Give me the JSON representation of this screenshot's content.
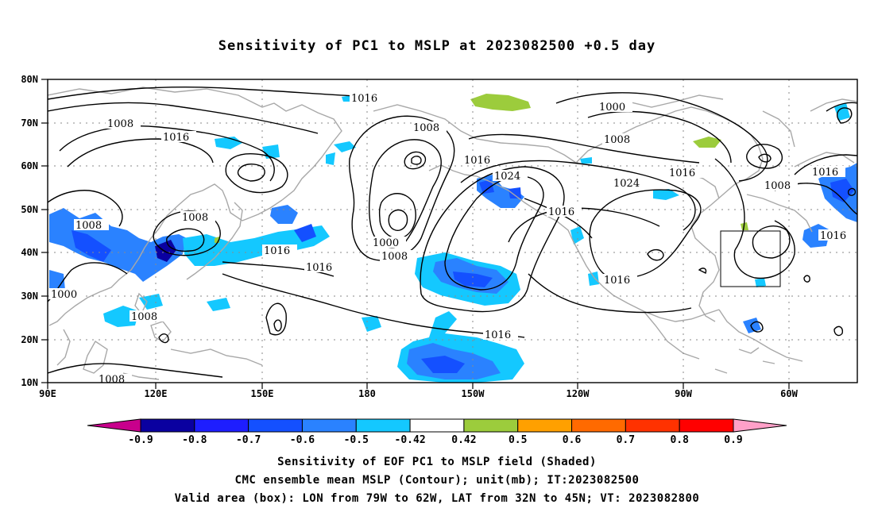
{
  "title": "Sensitivity of PC1 to MSLP at 2023082500 +0.5 day",
  "lat_ticks": [
    "80N",
    "70N",
    "60N",
    "50N",
    "40N",
    "30N",
    "20N",
    "10N"
  ],
  "lon_ticks": [
    "90E",
    "120E",
    "150E",
    "180",
    "150W",
    "120W",
    "90W",
    "60W"
  ],
  "colorbar": {
    "labels": [
      "-0.9",
      "-0.8",
      "-0.7",
      "-0.6",
      "-0.5",
      "-0.42",
      "0.42",
      "0.5",
      "0.6",
      "0.7",
      "0.8",
      "0.9"
    ],
    "colors": [
      "#c8008c",
      "#0a00a0",
      "#1e1eff",
      "#1450ff",
      "#2a82ff",
      "#14c8ff",
      "#ffffff",
      "#9ccc3c",
      "#ffa000",
      "#ff6a00",
      "#ff3200",
      "#ff0000",
      "#ffa0c8"
    ]
  },
  "contour_labels": [
    "1016",
    "1008",
    "1016",
    "1008",
    "1008",
    "1000",
    "1008",
    "1016",
    "1024",
    "1000",
    "1008",
    "1016",
    "1016",
    "1024",
    "1016",
    "1016",
    "1008",
    "1016",
    "1016",
    "1000",
    "1016",
    "1008",
    "1016",
    "1008",
    "1008"
  ],
  "shading_colors": {
    "strong_neg": "#1450ff",
    "moderate_neg": "#2a82ff",
    "weak_neg": "#14c8ff",
    "pos": "#9ccc3c"
  },
  "captions": [
    "Sensitivity of EOF PC1 to MSLP field (Shaded)",
    "CMC ensemble mean MSLP (Contour); unit(mb); IT:2023082500",
    "Valid area (box): LON from 79W to 62W, LAT from 32N to 45N; VT: 2023082800"
  ]
}
